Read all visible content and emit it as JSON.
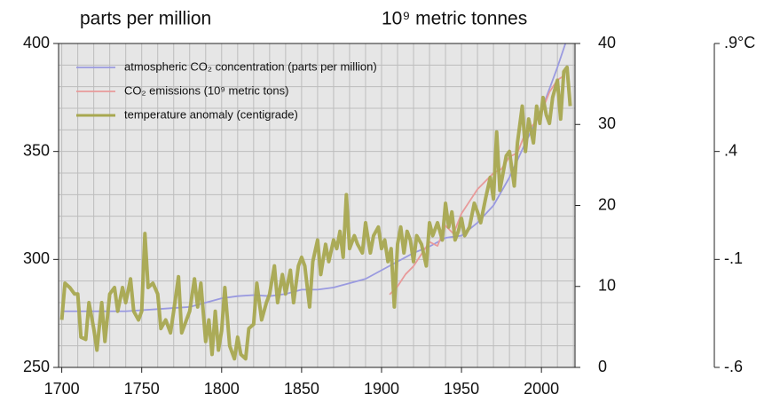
{
  "chart_data": {
    "type": "line",
    "ylabel": "parts per million",
    "y2label": "10⁹ metric tonnes",
    "xlim": [
      1698,
      2021
    ],
    "xticks": [
      1700,
      1750,
      1800,
      1850,
      1900,
      1950,
      2000
    ],
    "ylim": [
      250,
      400
    ],
    "yticks": [
      250,
      300,
      350,
      400
    ],
    "y2lim": [
      0,
      40
    ],
    "y2ticks": [
      0,
      10,
      20,
      30,
      40
    ],
    "y3lim": [
      -0.6,
      0.9
    ],
    "y3ticks": [
      {
        "value": 0.9,
        "label": ".9°C"
      },
      {
        "value": 0.4,
        "label": ".4"
      },
      {
        "value": -0.1,
        "label": "-.1"
      },
      {
        "value": -0.6,
        "label": "-.6"
      }
    ],
    "grid": true,
    "grid_step": {
      "x": 10,
      "y": 10
    },
    "legend": "upper left",
    "series": [
      {
        "name": "atmospheric CO₂ concentration (parts per million)",
        "color": "#9a9ae0",
        "axis": "y",
        "x": [
          1700,
          1710,
          1720,
          1730,
          1740,
          1750,
          1760,
          1770,
          1780,
          1790,
          1800,
          1810,
          1820,
          1830,
          1840,
          1850,
          1860,
          1870,
          1880,
          1890,
          1900,
          1910,
          1920,
          1930,
          1940,
          1950,
          1960,
          1970,
          1980,
          1990,
          2000,
          2010,
          2015
        ],
        "values": [
          276,
          276,
          276,
          276,
          276,
          276.5,
          277,
          277.5,
          278,
          280,
          282,
          283,
          283.5,
          283,
          284,
          286,
          286,
          287,
          289,
          291,
          295,
          299,
          303,
          306,
          310,
          311,
          317,
          325,
          338,
          354,
          369,
          389,
          400
        ]
      },
      {
        "name": "CO₂ emissions (10⁹ metric tons)",
        "color": "#e89a9a",
        "axis": "y2",
        "x": [
          1905,
          1910,
          1915,
          1920,
          1925,
          1930,
          1935,
          1940,
          1945,
          1950,
          1955,
          1960,
          1965,
          1970,
          1975,
          1980,
          1985,
          1990,
          1995,
          2000,
          2005,
          2010,
          2014
        ],
        "values": [
          9,
          10,
          11.5,
          12.5,
          14,
          15.5,
          15,
          17.5,
          16.5,
          19,
          20.5,
          22,
          23,
          24,
          24.5,
          26,
          26.5,
          29,
          30,
          31.5,
          34,
          35.5,
          36
        ]
      },
      {
        "name": "temperature anomaly (centigrade)",
        "color": "#a8a850",
        "axis": "y3",
        "x": [
          1700,
          1702,
          1705,
          1708,
          1710,
          1712,
          1715,
          1717,
          1720,
          1722,
          1725,
          1727,
          1730,
          1733,
          1735,
          1738,
          1740,
          1743,
          1745,
          1748,
          1750,
          1752,
          1754,
          1757,
          1760,
          1762,
          1765,
          1768,
          1770,
          1773,
          1775,
          1778,
          1780,
          1783,
          1785,
          1787,
          1790,
          1792,
          1794,
          1796,
          1798,
          1800,
          1802,
          1805,
          1808,
          1810,
          1812,
          1815,
          1817,
          1820,
          1822,
          1825,
          1828,
          1830,
          1833,
          1835,
          1838,
          1840,
          1843,
          1845,
          1848,
          1850,
          1852,
          1855,
          1857,
          1860,
          1862,
          1865,
          1867,
          1870,
          1872,
          1874,
          1876,
          1878,
          1880,
          1883,
          1885,
          1888,
          1890,
          1893,
          1895,
          1898,
          1900,
          1902,
          1904,
          1906,
          1908,
          1910,
          1912,
          1914,
          1916,
          1918,
          1920,
          1922,
          1925,
          1928,
          1930,
          1932,
          1935,
          1938,
          1940,
          1942,
          1944,
          1946,
          1948,
          1950,
          1952,
          1955,
          1958,
          1960,
          1962,
          1965,
          1968,
          1970,
          1972,
          1974,
          1976,
          1978,
          1980,
          1983,
          1985,
          1988,
          1990,
          1992,
          1995,
          1997,
          1999,
          2001,
          2003,
          2005,
          2007,
          2010,
          2012,
          2014,
          2016,
          2018
        ],
        "values": [
          -0.38,
          -0.21,
          -0.23,
          -0.26,
          -0.26,
          -0.46,
          -0.47,
          -0.3,
          -0.42,
          -0.52,
          -0.3,
          -0.48,
          -0.26,
          -0.23,
          -0.34,
          -0.23,
          -0.3,
          -0.19,
          -0.34,
          -0.38,
          -0.34,
          0.02,
          -0.23,
          -0.21,
          -0.26,
          -0.42,
          -0.38,
          -0.44,
          -0.34,
          -0.18,
          -0.44,
          -0.38,
          -0.34,
          -0.19,
          -0.32,
          -0.21,
          -0.48,
          -0.38,
          -0.54,
          -0.34,
          -0.52,
          -0.43,
          -0.23,
          -0.5,
          -0.56,
          -0.46,
          -0.54,
          -0.56,
          -0.42,
          -0.4,
          -0.21,
          -0.38,
          -0.3,
          -0.26,
          -0.13,
          -0.3,
          -0.17,
          -0.26,
          -0.15,
          -0.3,
          -0.13,
          -0.09,
          -0.13,
          -0.32,
          -0.11,
          -0.01,
          -0.17,
          -0.03,
          -0.11,
          -0.01,
          -0.05,
          0.03,
          -0.09,
          0.2,
          -0.05,
          0.01,
          -0.03,
          -0.07,
          0.07,
          -0.07,
          0.01,
          0.05,
          -0.05,
          -0.01,
          -0.11,
          -0.05,
          -0.32,
          -0.03,
          0.05,
          -0.07,
          0.03,
          -0.01,
          -0.11,
          0.01,
          -0.03,
          -0.13,
          0.07,
          0.01,
          0.07,
          -0.01,
          0.16,
          0.05,
          0.12,
          -0.01,
          0.03,
          0.09,
          0.01,
          0.05,
          0.16,
          0.12,
          0.07,
          0.18,
          0.28,
          0.18,
          0.49,
          0.22,
          0.3,
          0.38,
          0.4,
          0.24,
          0.44,
          0.61,
          0.4,
          0.55,
          0.44,
          0.61,
          0.53,
          0.65,
          0.57,
          0.53,
          0.65,
          0.73,
          0.55,
          0.77,
          0.79,
          0.61
        ]
      }
    ]
  }
}
